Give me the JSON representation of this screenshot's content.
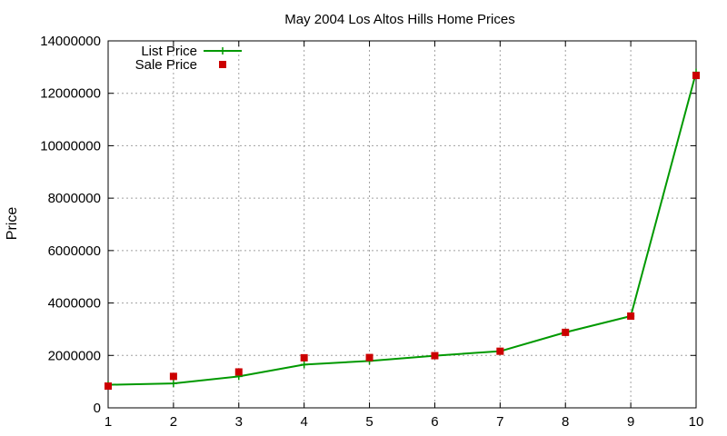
{
  "chart_data": {
    "type": "line",
    "title": "May 2004 Los Altos Hills Home Prices",
    "xlabel": "",
    "ylabel": "Price",
    "x": [
      1,
      2,
      3,
      4,
      5,
      6,
      7,
      8,
      9,
      10
    ],
    "xlim": [
      1,
      10
    ],
    "ylim": [
      0,
      14000000
    ],
    "xticks": [
      "1",
      "2",
      "3",
      "4",
      "5",
      "6",
      "7",
      "8",
      "9",
      "10"
    ],
    "yticks": [
      "0",
      "2000000",
      "4000000",
      "6000000",
      "8000000",
      "10000000",
      "12000000",
      "14000000"
    ],
    "grid": true,
    "legend_position": "top-left",
    "series": [
      {
        "name": "List Price",
        "style": "line-with-plus-markers",
        "color": "#009900",
        "values": [
          880000,
          930000,
          1200000,
          1650000,
          1790000,
          1990000,
          2160000,
          2880000,
          3500000,
          12800000
        ]
      },
      {
        "name": "Sale Price",
        "style": "square-markers",
        "color": "#cc0000",
        "values": [
          830000,
          1200000,
          1370000,
          1910000,
          1920000,
          1990000,
          2160000,
          2880000,
          3500000,
          12680000
        ]
      }
    ]
  }
}
